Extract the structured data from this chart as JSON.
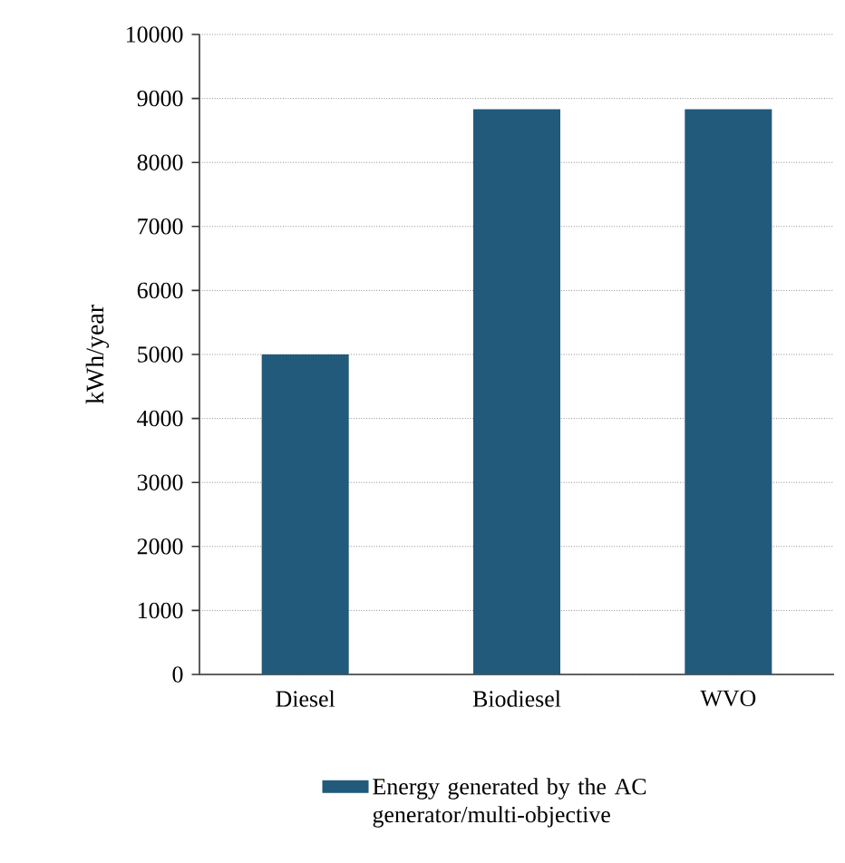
{
  "chart_data": {
    "type": "bar",
    "ylabel": "kWh/year",
    "categories": [
      "Diesel",
      "Biodiesel",
      "WVO"
    ],
    "series": [
      {
        "name": "Energy generated by the AC generator/multi-objective",
        "color": "#215a7a",
        "values": [
          5000,
          8830,
          8830
        ]
      }
    ],
    "ylim": [
      0,
      10000
    ],
    "yticks": [
      0,
      1000,
      2000,
      3000,
      4000,
      5000,
      6000,
      7000,
      8000,
      9000,
      10000
    ],
    "grid": "y",
    "legend": "bottom"
  }
}
